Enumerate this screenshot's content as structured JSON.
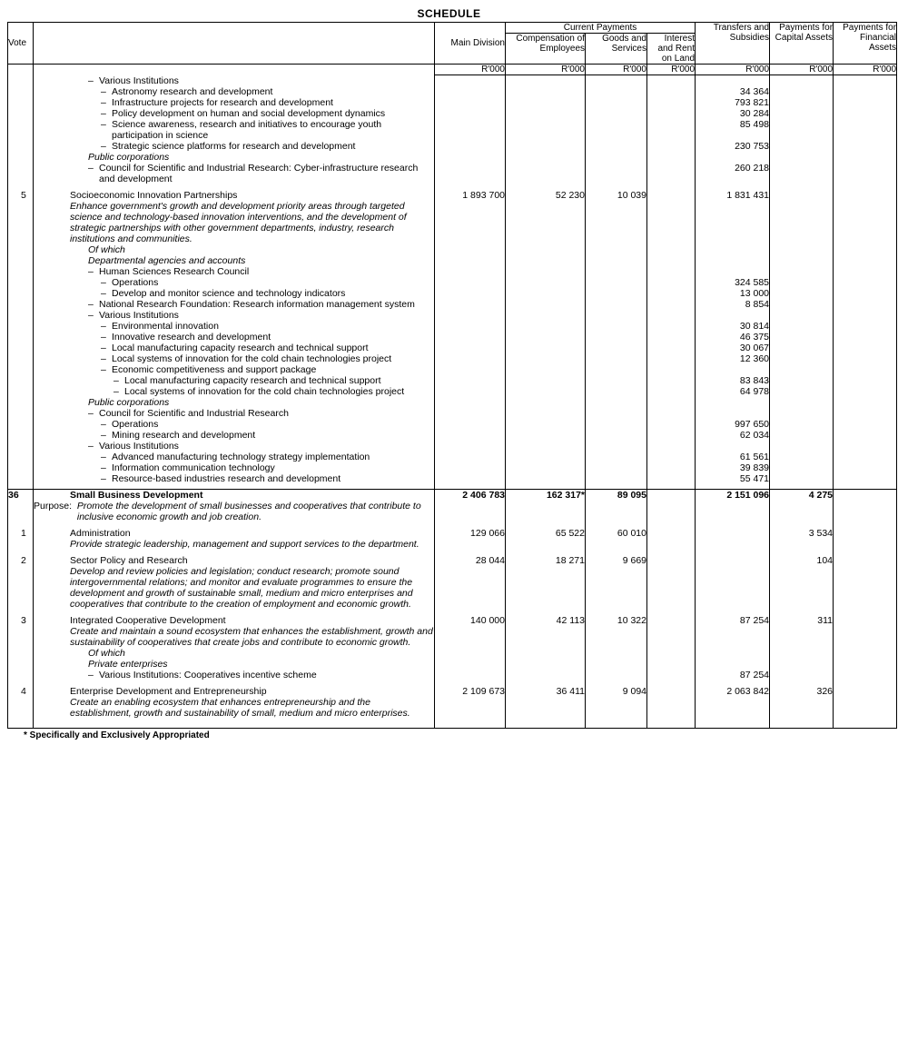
{
  "title": "SCHEDULE",
  "headers": {
    "vote": "Vote",
    "main_division": "Main Division",
    "current_payments": "Current Payments",
    "comp_employees": "Compensation of Employees",
    "goods_services": "Goods and Services",
    "interest_rent": "Interest and Rent on Land",
    "transfers_subsidies": "Transfers and Subsidies",
    "payments_capital": "Payments for Capital Assets",
    "payments_financial": "Payments for Financial Assets",
    "unit": "R'000"
  },
  "rows": [
    {
      "indent": 3,
      "dash": true,
      "text": "Various Institutions"
    },
    {
      "indent": 4,
      "dash": true,
      "text": "Astronomy research and development",
      "transfers": "34 364"
    },
    {
      "indent": 4,
      "dash": true,
      "text": "Infrastructure projects for research and development",
      "transfers": "793 821"
    },
    {
      "indent": 4,
      "dash": true,
      "text": "Policy development on human and social development dynamics",
      "transfers": "30 284"
    },
    {
      "indent": 4,
      "dash": true,
      "text": "Science awareness, research and initiatives to encourage youth participation in science",
      "transfers": "85 498"
    },
    {
      "indent": 4,
      "dash": true,
      "text": "Strategic science platforms for research and development",
      "transfers": "230 753"
    },
    {
      "indent": 2,
      "italic": true,
      "text": "Public corporations"
    },
    {
      "indent": 3,
      "dash": true,
      "text": "Council for Scientific and Industrial Research: Cyber-infrastructure research and development",
      "transfers": "260 218"
    },
    {
      "spacer": true
    },
    {
      "subnum": "5",
      "indent": 0,
      "text": "Socioeconomic Innovation Partnerships",
      "main": "1 893 700",
      "comp": "52 230",
      "goods": "10 039",
      "transfers": "1 831 431"
    },
    {
      "indent": 1,
      "italic": true,
      "text": "Enhance government's growth and development priority areas through targeted science and technology-based innovation interventions, and the development of strategic partnerships with other government departments, industry, research institutions and communities."
    },
    {
      "indent": 2,
      "italic": true,
      "text": "Of which"
    },
    {
      "indent": 2,
      "italic": true,
      "text": "Departmental agencies and accounts"
    },
    {
      "indent": 3,
      "dash": true,
      "text": "Human Sciences Research Council"
    },
    {
      "indent": 4,
      "dash": true,
      "text": "Operations",
      "transfers": "324 585"
    },
    {
      "indent": 4,
      "dash": true,
      "text": "Develop and monitor science and technology indicators",
      "transfers": "13 000"
    },
    {
      "indent": 3,
      "dash": true,
      "text": "National Research Foundation: Research information management system",
      "transfers": "8 854"
    },
    {
      "indent": 3,
      "dash": true,
      "text": "Various Institutions"
    },
    {
      "indent": 4,
      "dash": true,
      "text": "Environmental innovation",
      "transfers": "30 814"
    },
    {
      "indent": 4,
      "dash": true,
      "text": "Innovative research and development",
      "transfers": "46 375"
    },
    {
      "indent": 4,
      "dash": true,
      "text": "Local manufacturing capacity research and technical support",
      "transfers": "30 067"
    },
    {
      "indent": 4,
      "dash": true,
      "text": "Local systems of innovation for the cold chain technologies project",
      "transfers": "12 360"
    },
    {
      "indent": 4,
      "dash": true,
      "text": "Economic competitiveness and support package"
    },
    {
      "indent": 5,
      "dash": true,
      "text": "Local manufacturing capacity research and technical support",
      "transfers": "83 843"
    },
    {
      "indent": 5,
      "dash": true,
      "text": "Local systems of innovation for the cold chain technologies project",
      "transfers": "64 978"
    },
    {
      "indent": 2,
      "italic": true,
      "text": "Public corporations"
    },
    {
      "indent": 3,
      "dash": true,
      "text": "Council for Scientific and Industrial Research"
    },
    {
      "indent": 4,
      "dash": true,
      "text": "Operations",
      "transfers": "997 650"
    },
    {
      "indent": 4,
      "dash": true,
      "text": "Mining research and development",
      "transfers": "62 034"
    },
    {
      "indent": 3,
      "dash": true,
      "text": "Various Institutions"
    },
    {
      "indent": 4,
      "dash": true,
      "text": "Advanced manufacturing technology strategy implementation",
      "transfers": "61 561"
    },
    {
      "indent": 4,
      "dash": true,
      "text": "Information communication technology",
      "transfers": "39 839"
    },
    {
      "indent": 4,
      "dash": true,
      "text": "Resource-based industries research and development",
      "transfers": "55 471"
    },
    {
      "spacer": true
    },
    {
      "section_break": true
    },
    {
      "vote": "36",
      "bold": true,
      "indent": 0,
      "text": "Small Business Development",
      "main": "2 406 783",
      "comp": "162 317*",
      "goods": "89 095",
      "transfers": "2 151 096",
      "capital": "4 275"
    },
    {
      "indent": 0,
      "purpose": true,
      "text": "Promote the development of small businesses and cooperatives that contribute to inclusive economic growth and job creation."
    },
    {
      "spacer": true
    },
    {
      "subnum": "1",
      "indent": 0,
      "text": "Administration",
      "main": "129 066",
      "comp": "65 522",
      "goods": "60 010",
      "capital": "3 534"
    },
    {
      "indent": 1,
      "italic": true,
      "text": "Provide strategic leadership, management and support services to the department."
    },
    {
      "spacer": true
    },
    {
      "subnum": "2",
      "indent": 0,
      "text": "Sector Policy and Research",
      "main": "28 044",
      "comp": "18 271",
      "goods": "9 669",
      "capital": "104"
    },
    {
      "indent": 1,
      "italic": true,
      "text": "Develop and review policies and legislation; conduct research; promote sound intergovernmental relations; and monitor and evaluate programmes to ensure the development and growth of sustainable small, medium and micro enterprises and cooperatives that contribute to the creation of employment and economic growth."
    },
    {
      "spacer": true
    },
    {
      "subnum": "3",
      "indent": 0,
      "text": "Integrated Cooperative Development",
      "main": "140 000",
      "comp": "42 113",
      "goods": "10 322",
      "transfers": "87 254",
      "capital": "311"
    },
    {
      "indent": 1,
      "italic": true,
      "text": "Create and maintain a sound ecosystem that enhances the establishment, growth and sustainability of cooperatives that create jobs and contribute to economic growth."
    },
    {
      "indent": 2,
      "italic": true,
      "text": "Of which"
    },
    {
      "indent": 2,
      "italic": true,
      "text": "Private enterprises"
    },
    {
      "indent": 3,
      "dash": true,
      "text": "Various Institutions: Cooperatives incentive scheme",
      "transfers": "87 254"
    },
    {
      "spacer": true
    },
    {
      "subnum": "4",
      "indent": 0,
      "text": "Enterprise Development and Entrepreneurship",
      "main": "2 109 673",
      "comp": "36 411",
      "goods": "9 094",
      "transfers": "2 063 842",
      "capital": "326"
    },
    {
      "indent": 1,
      "italic": true,
      "text": "Create an enabling ecosystem that enhances entrepreneurship and the establishment, growth and sustainability of small, medium and micro enterprises."
    },
    {
      "spacer": true
    }
  ],
  "footnote": "* Specifically and Exclusively Appropriated",
  "purpose_label": "Purpose:"
}
